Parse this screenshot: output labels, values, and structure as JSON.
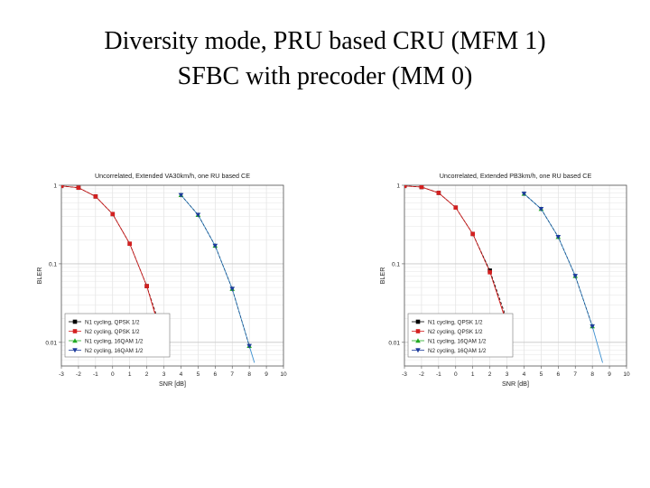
{
  "slide": {
    "title_line1": "Diversity mode, PRU based CRU (MFM 1)",
    "title_line2": "SFBC with precoder (MM 0)"
  },
  "chart_data": [
    {
      "type": "line",
      "title": "Uncorrelated, Extended VA30km/h, one RU based CE",
      "xlabel": "SNR [dB]",
      "ylabel": "BLER",
      "xlim": [
        -3,
        10
      ],
      "ylim": [
        0.005,
        1
      ],
      "yscale": "log",
      "xticks": [
        "-3",
        "-2",
        "-1",
        "0",
        "1",
        "2",
        "3",
        "4",
        "5",
        "6",
        "7",
        "8",
        "9",
        "10"
      ],
      "yticks": [
        {
          "value": 1,
          "label": "1"
        },
        {
          "value": 0.1,
          "label": "0.1"
        },
        {
          "value": 0.01,
          "label": "0.01"
        }
      ],
      "grid": true,
      "legend": "bottom-left",
      "series": [
        {
          "name": "N1 cycling, QPSK 1/2",
          "color": "#000000",
          "marker": "square",
          "dash": "3,2",
          "x": [
            -3,
            -2,
            -1,
            0,
            1,
            2,
            3
          ],
          "y": [
            0.98,
            0.93,
            0.72,
            0.43,
            0.18,
            0.052,
            0.0115
          ]
        },
        {
          "name": "N2 cycling, QPSK 1/2",
          "color": "#d42020",
          "marker": "circle",
          "dash": "3,2",
          "x": [
            -3,
            -2,
            -1,
            0,
            1,
            2,
            3
          ],
          "y": [
            0.98,
            0.93,
            0.72,
            0.43,
            0.18,
            0.052,
            0.0105
          ]
        },
        {
          "name": "N1 cycling, 16QAM 1/2",
          "color": "#22aa22",
          "marker": "triangle-up",
          "dash": "3,2",
          "x": [
            4,
            5,
            6,
            7,
            8
          ],
          "y": [
            0.75,
            0.42,
            0.17,
            0.048,
            0.009
          ]
        },
        {
          "name": "N2 cycling, 16QAM 1/2",
          "color": "#1e3c9c",
          "marker": "triangle-down",
          "dash": "3,2",
          "x": [
            4,
            5,
            6,
            7,
            8
          ],
          "y": [
            0.75,
            0.42,
            0.17,
            0.048,
            0.009
          ]
        }
      ],
      "fits": [
        {
          "color": "#d42020",
          "x": [
            -3,
            -2,
            -1,
            0,
            1,
            2,
            3
          ],
          "y": [
            0.98,
            0.93,
            0.72,
            0.43,
            0.18,
            0.052,
            0.0095
          ]
        },
        {
          "color": "#3b8fd0",
          "x": [
            4,
            5,
            6,
            7,
            8,
            8.3
          ],
          "y": [
            0.75,
            0.42,
            0.17,
            0.048,
            0.009,
            0.0055
          ]
        }
      ]
    },
    {
      "type": "line",
      "title": "Uncorrelated, Extended PB3km/h, one RU based CE",
      "xlabel": "SNR [dB]",
      "ylabel": "BLER",
      "xlim": [
        -3,
        10
      ],
      "ylim": [
        0.005,
        1
      ],
      "yscale": "log",
      "xticks": [
        "-3",
        "-2",
        "-1",
        "0",
        "1",
        "2",
        "3",
        "4",
        "5",
        "6",
        "7",
        "8",
        "9",
        "10"
      ],
      "yticks": [
        {
          "value": 1,
          "label": "1"
        },
        {
          "value": 0.1,
          "label": "0.1"
        },
        {
          "value": 0.01,
          "label": "0.01"
        }
      ],
      "grid": true,
      "legend": "bottom-left",
      "series": [
        {
          "name": "N1 cycling, QPSK 1/2",
          "color": "#000000",
          "marker": "square",
          "dash": "3,2",
          "x": [
            -3,
            -2,
            -1,
            0,
            1,
            2,
            3
          ],
          "y": [
            0.98,
            0.95,
            0.8,
            0.52,
            0.24,
            0.082,
            0.0195
          ]
        },
        {
          "name": "N2 cycling, QPSK 1/2",
          "color": "#d42020",
          "marker": "circle",
          "dash": "3,2",
          "x": [
            -3,
            -2,
            -1,
            0,
            1,
            2,
            3
          ],
          "y": [
            0.98,
            0.95,
            0.8,
            0.52,
            0.24,
            0.078,
            0.018
          ]
        },
        {
          "name": "N1 cycling, 16QAM 1/2",
          "color": "#22aa22",
          "marker": "triangle-up",
          "dash": "3,2",
          "x": [
            4,
            5,
            6,
            7,
            8
          ],
          "y": [
            0.78,
            0.5,
            0.22,
            0.07,
            0.016
          ]
        },
        {
          "name": "N2 cycling, 16QAM 1/2",
          "color": "#1e3c9c",
          "marker": "triangle-down",
          "dash": "3,2",
          "x": [
            4,
            5,
            6,
            7,
            8
          ],
          "y": [
            0.78,
            0.5,
            0.22,
            0.07,
            0.016
          ]
        }
      ],
      "fits": [
        {
          "color": "#d42020",
          "x": [
            -3,
            -2,
            -1,
            0,
            1,
            2,
            3
          ],
          "y": [
            0.98,
            0.95,
            0.8,
            0.52,
            0.24,
            0.08,
            0.017
          ]
        },
        {
          "color": "#3b8fd0",
          "x": [
            4,
            5,
            6,
            7,
            8,
            8.6
          ],
          "y": [
            0.78,
            0.5,
            0.22,
            0.07,
            0.016,
            0.0055
          ]
        }
      ]
    }
  ]
}
